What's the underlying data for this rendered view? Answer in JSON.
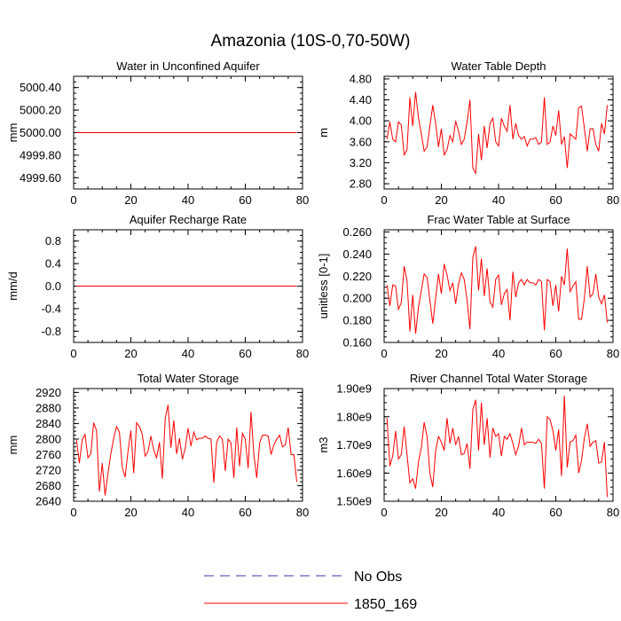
{
  "title": "Amazonia (10S-0,70-50W)",
  "legend": {
    "items": [
      {
        "label": "No Obs",
        "color": "#3a3aaa",
        "style": "dashed"
      },
      {
        "label": "1850_169",
        "color": "#ff0000",
        "style": "solid"
      }
    ]
  },
  "chart_data": [
    {
      "type": "line",
      "title": "Water in Unconfined Aquifer",
      "ylabel": "mm",
      "xlabel": "",
      "xlim": [
        0,
        80
      ],
      "xticks": [
        "0",
        "20",
        "40",
        "60",
        "80"
      ],
      "ylim": [
        4999.5,
        5000.5
      ],
      "yticks": [
        "4999.60",
        "4999.80",
        "5000.00",
        "5000.20",
        "5000.40"
      ],
      "ytick_values": [
        4999.6,
        4999.8,
        5000.0,
        5000.2,
        5000.4
      ],
      "series": [
        {
          "name": "1850_169",
          "x_start": 1,
          "x_step": 1,
          "values": [
            5000,
            5000,
            5000,
            5000,
            5000,
            5000,
            5000,
            5000,
            5000,
            5000,
            5000,
            5000,
            5000,
            5000,
            5000,
            5000,
            5000,
            5000,
            5000,
            5000,
            5000,
            5000,
            5000,
            5000,
            5000,
            5000,
            5000,
            5000,
            5000,
            5000,
            5000,
            5000,
            5000,
            5000,
            5000,
            5000,
            5000,
            5000,
            5000,
            5000,
            5000,
            5000,
            5000,
            5000,
            5000,
            5000,
            5000,
            5000,
            5000,
            5000,
            5000,
            5000,
            5000,
            5000,
            5000,
            5000,
            5000,
            5000,
            5000,
            5000,
            5000,
            5000,
            5000,
            5000,
            5000,
            5000,
            5000,
            5000,
            5000,
            5000,
            5000,
            5000,
            5000,
            5000,
            5000,
            5000,
            5000,
            5000
          ]
        }
      ]
    },
    {
      "type": "line",
      "title": "Water Table Depth",
      "ylabel": "m",
      "xlabel": "",
      "xlim": [
        0,
        80
      ],
      "xticks": [
        "0",
        "20",
        "40",
        "60",
        "80"
      ],
      "ylim": [
        2.7,
        4.85
      ],
      "yticks": [
        "2.80",
        "3.20",
        "3.60",
        "4.00",
        "4.40",
        "4.80"
      ],
      "ytick_values": [
        2.8,
        3.2,
        3.6,
        4.0,
        4.4,
        4.8
      ],
      "series": [
        {
          "name": "1850_169",
          "x_start": 1,
          "x_step": 1,
          "values": [
            3.65,
            3.98,
            3.65,
            3.6,
            3.98,
            3.92,
            3.35,
            3.45,
            4.45,
            3.9,
            4.55,
            4.05,
            3.75,
            3.42,
            3.5,
            3.9,
            4.3,
            3.95,
            3.5,
            3.85,
            3.35,
            3.45,
            3.72,
            3.6,
            4.0,
            3.8,
            3.55,
            3.65,
            3.98,
            4.4,
            3.1,
            3.0,
            3.75,
            3.25,
            3.9,
            3.48,
            3.95,
            4.05,
            3.6,
            3.52,
            4.05,
            3.9,
            3.8,
            4.3,
            3.65,
            3.95,
            3.72,
            3.65,
            3.7,
            3.52,
            3.65,
            3.65,
            3.68,
            3.55,
            3.6,
            4.45,
            3.55,
            3.6,
            3.9,
            3.72,
            4.2,
            3.55,
            3.7,
            3.1,
            3.75,
            3.7,
            3.65,
            4.25,
            4.28,
            3.85,
            3.42,
            3.85,
            3.85,
            3.55,
            3.42,
            3.95,
            3.75,
            4.3
          ]
        }
      ]
    },
    {
      "type": "line",
      "title": "Aquifer Recharge Rate",
      "ylabel": "mm/d",
      "xlabel": "",
      "xlim": [
        0,
        80
      ],
      "xticks": [
        "0",
        "20",
        "40",
        "60",
        "80"
      ],
      "ylim": [
        -1.0,
        1.0
      ],
      "yticks": [
        "-0.8",
        "-0.4",
        "0.0",
        "0.4",
        "0.8"
      ],
      "ytick_values": [
        -0.8,
        -0.4,
        0.0,
        0.4,
        0.8
      ],
      "series": [
        {
          "name": "1850_169",
          "x_start": 1,
          "x_step": 1,
          "values": [
            0,
            0,
            0,
            0,
            0,
            0,
            0,
            0,
            0,
            0,
            0,
            0,
            0,
            0,
            0,
            0,
            0,
            0,
            0,
            0,
            0,
            0,
            0,
            0,
            0,
            0,
            0,
            0,
            0,
            0,
            0,
            0,
            0,
            0,
            0,
            0,
            0,
            0,
            0,
            0,
            0,
            0,
            0,
            0,
            0,
            0,
            0,
            0,
            0,
            0,
            0,
            0,
            0,
            0,
            0,
            0,
            0,
            0,
            0,
            0,
            0,
            0,
            0,
            0,
            0,
            0,
            0,
            0,
            0,
            0,
            0,
            0,
            0,
            0,
            0,
            0,
            0,
            0
          ]
        }
      ]
    },
    {
      "type": "line",
      "title": "Frac Water Table at Surface",
      "ylabel": "unitless [0-1]",
      "xlabel": "",
      "xlim": [
        0,
        80
      ],
      "xticks": [
        "0",
        "20",
        "40",
        "60",
        "80"
      ],
      "ylim": [
        0.16,
        0.262
      ],
      "yticks": [
        "0.160",
        "0.180",
        "0.200",
        "0.220",
        "0.240",
        "0.260"
      ],
      "ytick_values": [
        0.16,
        0.18,
        0.2,
        0.22,
        0.24,
        0.26
      ],
      "series": [
        {
          "name": "1850_169",
          "x_start": 1,
          "x_step": 1,
          "values": [
            0.212,
            0.193,
            0.212,
            0.211,
            0.19,
            0.196,
            0.229,
            0.216,
            0.17,
            0.203,
            0.168,
            0.192,
            0.207,
            0.222,
            0.219,
            0.198,
            0.177,
            0.2,
            0.222,
            0.204,
            0.231,
            0.221,
            0.207,
            0.214,
            0.195,
            0.213,
            0.223,
            0.217,
            0.198,
            0.172,
            0.237,
            0.247,
            0.207,
            0.236,
            0.202,
            0.227,
            0.197,
            0.192,
            0.217,
            0.221,
            0.194,
            0.204,
            0.208,
            0.18,
            0.224,
            0.201,
            0.214,
            0.217,
            0.212,
            0.217,
            0.214,
            0.214,
            0.212,
            0.217,
            0.215,
            0.171,
            0.217,
            0.215,
            0.193,
            0.212,
            0.188,
            0.22,
            0.212,
            0.245,
            0.206,
            0.211,
            0.215,
            0.181,
            0.181,
            0.2,
            0.229,
            0.201,
            0.204,
            0.222,
            0.201,
            0.195,
            0.203,
            0.178
          ]
        }
      ]
    },
    {
      "type": "line",
      "title": "Total Water Storage",
      "ylabel": "mm",
      "xlabel": "",
      "xlim": [
        0,
        80
      ],
      "xticks": [
        "0",
        "20",
        "40",
        "60",
        "80"
      ],
      "ylim": [
        2640,
        2930
      ],
      "yticks": [
        "2640",
        "2680",
        "2720",
        "2760",
        "2800",
        "2840",
        "2880",
        "2920"
      ],
      "ytick_values": [
        2640,
        2680,
        2720,
        2760,
        2800,
        2840,
        2880,
        2920
      ],
      "series": [
        {
          "name": "1850_169",
          "x_start": 1,
          "x_step": 1,
          "values": [
            2798,
            2738,
            2798,
            2812,
            2752,
            2762,
            2842,
            2822,
            2665,
            2738,
            2655,
            2712,
            2762,
            2802,
            2832,
            2818,
            2728,
            2702,
            2768,
            2822,
            2712,
            2842,
            2832,
            2812,
            2756,
            2768,
            2808,
            2772,
            2752,
            2792,
            2698,
            2852,
            2888,
            2778,
            2848,
            2762,
            2802,
            2748,
            2776,
            2828,
            2782,
            2818,
            2798,
            2802,
            2802,
            2808,
            2802,
            2800,
            2688,
            2792,
            2808,
            2800,
            2718,
            2800,
            2790,
            2700,
            2830,
            2730,
            2815,
            2800,
            2725,
            2870,
            2760,
            2700,
            2790,
            2810,
            2810,
            2808,
            2760,
            2785,
            2800,
            2810,
            2780,
            2785,
            2830,
            2760,
            2760,
            2690
          ]
        }
      ]
    },
    {
      "type": "line",
      "title": "River Channel Total Water Storage",
      "ylabel": "m3",
      "xlabel": "",
      "xlim": [
        0,
        80
      ],
      "xticks": [
        "0",
        "20",
        "40",
        "60",
        "80"
      ],
      "ylim": [
        1500000000.0,
        1900000000.0
      ],
      "yticks": [
        "1.50e9",
        "1.60e9",
        "1.70e9",
        "1.80e9",
        "1.90e9"
      ],
      "ytick_values": [
        1500000000,
        1600000000,
        1700000000,
        1800000000,
        1900000000
      ],
      "series": [
        {
          "name": "1850_169",
          "x_start": 1,
          "x_step": 1,
          "values": [
            1795000000.0,
            1625000000.0,
            1660000000.0,
            1750000000.0,
            1650000000.0,
            1665000000.0,
            1765000000.0,
            1665000000.0,
            1565000000.0,
            1580000000.0,
            1545000000.0,
            1640000000.0,
            1690000000.0,
            1780000000.0,
            1730000000.0,
            1600000000.0,
            1550000000.0,
            1680000000.0,
            1730000000.0,
            1710000000.0,
            1680000000.0,
            1795000000.0,
            1705000000.0,
            1760000000.0,
            1700000000.0,
            1730000000.0,
            1665000000.0,
            1670000000.0,
            1705000000.0,
            1615000000.0,
            1825000000.0,
            1860000000.0,
            1680000000.0,
            1850000000.0,
            1700000000.0,
            1795000000.0,
            1655000000.0,
            1760000000.0,
            1730000000.0,
            1740000000.0,
            1660000000.0,
            1730000000.0,
            1720000000.0,
            1740000000.0,
            1705000000.0,
            1665000000.0,
            1695000000.0,
            1760000000.0,
            1700000000.0,
            1710000000.0,
            1710000000.0,
            1710000000.0,
            1705000000.0,
            1720000000.0,
            1705000000.0,
            1545000000.0,
            1800000000.0,
            1790000000.0,
            1750000000.0,
            1680000000.0,
            1755000000.0,
            1590000000.0,
            1875000000.0,
            1620000000.0,
            1710000000.0,
            1715000000.0,
            1735000000.0,
            1600000000.0,
            1645000000.0,
            1725000000.0,
            1775000000.0,
            1695000000.0,
            1710000000.0,
            1715000000.0,
            1635000000.0,
            1640000000.0,
            1710000000.0,
            1515000000.0
          ]
        }
      ]
    }
  ]
}
